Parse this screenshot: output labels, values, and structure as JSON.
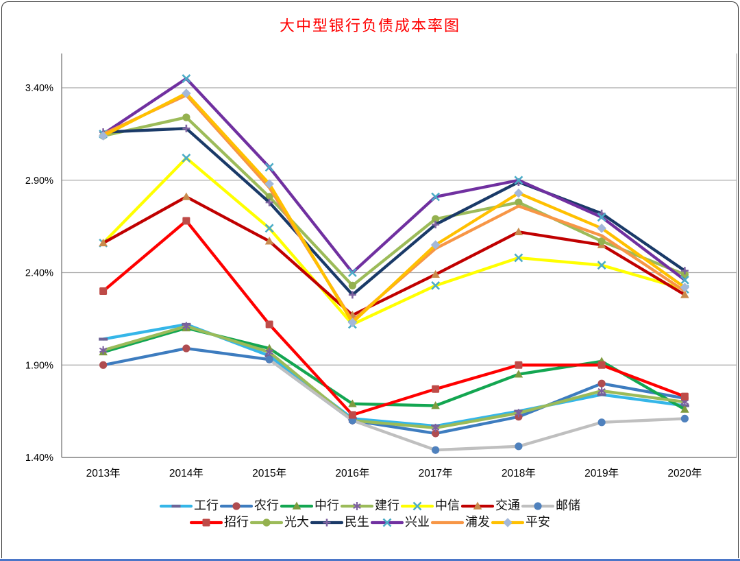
{
  "page": {
    "bottom_rule_color": "#4b76c8"
  },
  "chart_data": {
    "type": "line",
    "title": "大中型银行负债成本率图",
    "title_color": "#ff0000",
    "categories": [
      "2013年",
      "2014年",
      "2015年",
      "2016年",
      "2017年",
      "2018年",
      "2019年",
      "2020年"
    ],
    "y_ticks": [
      "3.40%",
      "2.90%",
      "2.40%",
      "1.90%",
      "1.40%"
    ],
    "y_tick_values": [
      3.4,
      2.9,
      2.4,
      1.9,
      1.4
    ],
    "ylim": [
      1.4,
      3.585
    ],
    "grid": true,
    "legend_position": "bottom",
    "legend_rows": [
      [
        0,
        1,
        2,
        3,
        4,
        5,
        6
      ],
      [
        7,
        8,
        9,
        10,
        11,
        12
      ]
    ],
    "series": [
      {
        "name": "工行",
        "color": "#35b6e8",
        "marker": "dash",
        "marker_color": "#6e6496",
        "values": [
          2.04,
          2.12,
          1.95,
          1.61,
          1.57,
          1.65,
          1.74,
          1.68
        ]
      },
      {
        "name": "农行",
        "color": "#3d7cbf",
        "marker": "circle",
        "marker_color": "#af4c50",
        "values": [
          1.9,
          1.99,
          1.93,
          1.6,
          1.53,
          1.62,
          1.8,
          1.72
        ]
      },
      {
        "name": "中行",
        "color": "#13a651",
        "marker": "triangle",
        "marker_color": "#7e9b3f",
        "values": [
          1.97,
          2.1,
          1.99,
          1.69,
          1.68,
          1.85,
          1.92,
          1.66
        ]
      },
      {
        "name": "建行",
        "color": "#9bbb59",
        "marker": "asterisk",
        "marker_color": "#7d60a0",
        "values": [
          1.98,
          2.11,
          1.97,
          1.6,
          1.56,
          1.64,
          1.76,
          1.7
        ]
      },
      {
        "name": "中信",
        "color": "#ffff00",
        "marker": "x",
        "marker_color": "#4bacc6",
        "values": [
          2.56,
          3.02,
          2.64,
          2.12,
          2.33,
          2.48,
          2.44,
          2.31
        ]
      },
      {
        "name": "交通",
        "color": "#c00000",
        "marker": "triangle",
        "marker_color": "#c88b4c",
        "values": [
          2.56,
          2.81,
          2.57,
          2.17,
          2.39,
          2.62,
          2.55,
          2.28
        ]
      },
      {
        "name": "邮储",
        "color": "#bfbfbf",
        "marker": "circle",
        "marker_color": "#4f81bd",
        "values": [
          null,
          null,
          1.93,
          1.6,
          1.44,
          1.46,
          1.59,
          1.61
        ]
      },
      {
        "name": "招行",
        "color": "#fe0000",
        "marker": "square",
        "marker_color": "#be4b48",
        "values": [
          2.3,
          2.68,
          2.12,
          1.63,
          1.77,
          1.9,
          1.9,
          1.73
        ]
      },
      {
        "name": "光大",
        "color": "#9cbb59",
        "marker": "circle",
        "marker_color": "#94b14f",
        "values": [
          3.14,
          3.24,
          2.81,
          2.33,
          2.69,
          2.78,
          2.57,
          2.39
        ]
      },
      {
        "name": "民生",
        "color": "#1a3a68",
        "marker": "plus",
        "marker_color": "#8064a2",
        "values": [
          3.16,
          3.18,
          2.78,
          2.28,
          2.66,
          2.89,
          2.72,
          2.41
        ]
      },
      {
        "name": "兴业",
        "color": "#7030a0",
        "marker": "x",
        "marker_color": "#4bacc6",
        "values": [
          3.15,
          3.45,
          2.97,
          2.4,
          2.81,
          2.9,
          2.7,
          2.36
        ]
      },
      {
        "name": "浦发",
        "color": "#f79646",
        "marker": "none",
        "marker_color": "#f79646",
        "values": [
          3.15,
          3.36,
          2.86,
          2.14,
          2.53,
          2.76,
          2.6,
          2.3
        ]
      },
      {
        "name": "平安",
        "color": "#ffc000",
        "marker": "diamond",
        "marker_color": "#a3b8d9",
        "values": [
          3.14,
          3.37,
          2.88,
          2.13,
          2.55,
          2.83,
          2.64,
          2.32
        ]
      }
    ]
  }
}
